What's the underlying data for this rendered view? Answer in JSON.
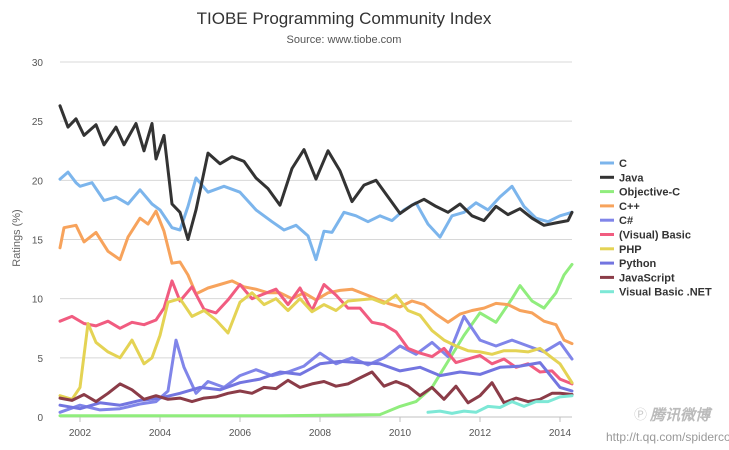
{
  "chart_data": {
    "type": "line",
    "title": "TIOBE Programming Community Index",
    "subtitle": "Source: www.tiobe.com",
    "ylabel": "Ratings (%)",
    "xlabel": "",
    "xlim": [
      2001.5,
      2014.3
    ],
    "ylim": [
      0,
      30
    ],
    "x_ticks": [
      2002,
      2004,
      2006,
      2008,
      2010,
      2012,
      2014
    ],
    "x_tick_labels": [
      "2002",
      "2004",
      "2006",
      "2008",
      "2010",
      "2012",
      "2014"
    ],
    "y_ticks": [
      0,
      5,
      10,
      15,
      20,
      25,
      30
    ],
    "y_tick_labels": [
      "0",
      "5",
      "10",
      "15",
      "20",
      "25",
      "30"
    ],
    "grid": true,
    "legend_position": "right",
    "series": [
      {
        "name": "C",
        "color": "#7cb5ec",
        "x": [
          2001.5,
          2001.7,
          2001.9,
          2002.0,
          2002.3,
          2002.6,
          2002.9,
          2003.2,
          2003.5,
          2003.8,
          2004.0,
          2004.3,
          2004.5,
          2004.7,
          2004.9,
          2005.2,
          2005.6,
          2006.0,
          2006.4,
          2006.8,
          2007.1,
          2007.4,
          2007.7,
          2007.9,
          2008.1,
          2008.3,
          2008.6,
          2008.9,
          2009.2,
          2009.5,
          2009.8,
          2010.1,
          2010.4,
          2010.7,
          2011.0,
          2011.3,
          2011.6,
          2011.9,
          2012.2,
          2012.5,
          2012.8,
          2013.1,
          2013.4,
          2013.7,
          2014.0,
          2014.3
        ],
        "y": [
          20.1,
          20.7,
          19.8,
          19.5,
          19.8,
          18.3,
          18.6,
          18.0,
          19.2,
          18.0,
          17.5,
          16.0,
          15.8,
          17.8,
          20.2,
          19.0,
          19.5,
          19.0,
          17.5,
          16.5,
          15.8,
          16.2,
          15.3,
          13.3,
          15.7,
          15.6,
          17.3,
          17.0,
          16.5,
          17.0,
          16.6,
          17.5,
          18.1,
          16.3,
          15.2,
          17.0,
          17.3,
          18.1,
          17.5,
          18.6,
          19.5,
          17.8,
          16.8,
          16.5,
          17.0,
          17.3
        ]
      },
      {
        "name": "Java",
        "color": "#333333",
        "x": [
          2001.5,
          2001.7,
          2001.9,
          2002.1,
          2002.4,
          2002.6,
          2002.9,
          2003.1,
          2003.4,
          2003.6,
          2003.8,
          2003.9,
          2004.1,
          2004.3,
          2004.5,
          2004.7,
          2004.9,
          2005.2,
          2005.5,
          2005.8,
          2006.1,
          2006.4,
          2006.7,
          2007.0,
          2007.3,
          2007.6,
          2007.9,
          2008.2,
          2008.5,
          2008.8,
          2009.1,
          2009.4,
          2009.7,
          2010.0,
          2010.3,
          2010.6,
          2010.9,
          2011.2,
          2011.5,
          2011.8,
          2012.1,
          2012.4,
          2012.7,
          2013.0,
          2013.3,
          2013.6,
          2013.9,
          2014.2,
          2014.3
        ],
        "y": [
          26.3,
          24.5,
          25.2,
          23.8,
          24.7,
          23.0,
          24.5,
          23.0,
          24.8,
          22.5,
          24.8,
          21.8,
          23.8,
          18.0,
          17.3,
          15.0,
          17.5,
          22.3,
          21.4,
          22.0,
          21.6,
          20.2,
          19.3,
          17.9,
          21.0,
          22.6,
          20.1,
          22.5,
          20.8,
          18.2,
          19.6,
          20.0,
          18.6,
          17.2,
          17.9,
          18.4,
          17.8,
          17.3,
          18.0,
          17.0,
          16.6,
          17.8,
          17.1,
          17.6,
          16.8,
          16.2,
          16.4,
          16.6,
          17.3
        ]
      },
      {
        "name": "Objective-C",
        "color": "#90ed7d",
        "x": [
          2001.5,
          2004.0,
          2007.0,
          2009.5,
          2010.0,
          2010.4,
          2010.8,
          2011.2,
          2011.6,
          2012.0,
          2012.4,
          2012.8,
          2013.0,
          2013.3,
          2013.6,
          2013.9,
          2014.1,
          2014.3
        ],
        "y": [
          0.1,
          0.1,
          0.1,
          0.2,
          0.9,
          1.3,
          2.5,
          4.7,
          6.9,
          8.8,
          8.0,
          10.0,
          11.1,
          9.8,
          9.2,
          10.5,
          12.0,
          12.9
        ]
      },
      {
        "name": "C++",
        "color": "#f7a35c",
        "x": [
          2001.5,
          2001.6,
          2001.9,
          2002.1,
          2002.4,
          2002.7,
          2003.0,
          2003.2,
          2003.5,
          2003.7,
          2003.9,
          2004.1,
          2004.3,
          2004.5,
          2004.7,
          2004.9,
          2005.2,
          2005.5,
          2005.8,
          2006.1,
          2006.4,
          2006.7,
          2007.0,
          2007.3,
          2007.6,
          2007.9,
          2008.2,
          2008.5,
          2008.8,
          2009.1,
          2009.4,
          2009.7,
          2010.0,
          2010.3,
          2010.6,
          2010.9,
          2011.2,
          2011.5,
          2011.8,
          2012.1,
          2012.4,
          2012.7,
          2013.0,
          2013.3,
          2013.6,
          2013.9,
          2014.1,
          2014.3
        ],
        "y": [
          14.3,
          16.0,
          16.2,
          14.8,
          15.6,
          14.0,
          13.3,
          15.2,
          16.8,
          16.3,
          17.4,
          15.7,
          13.0,
          13.1,
          12.0,
          10.4,
          10.9,
          11.2,
          11.5,
          11.0,
          10.8,
          10.5,
          10.5,
          10.0,
          10.5,
          9.9,
          10.5,
          10.7,
          10.8,
          10.4,
          10.0,
          9.6,
          9.3,
          9.8,
          9.5,
          8.7,
          8.0,
          8.7,
          9.0,
          9.2,
          9.6,
          9.5,
          9.0,
          8.8,
          8.1,
          7.8,
          6.5,
          6.2
        ]
      },
      {
        "name": "C#",
        "color": "#8085e9",
        "x": [
          2001.5,
          2002.0,
          2002.5,
          2003.0,
          2003.5,
          2003.9,
          2004.2,
          2004.4,
          2004.6,
          2004.9,
          2005.2,
          2005.6,
          2006.0,
          2006.4,
          2006.8,
          2007.2,
          2007.6,
          2008.0,
          2008.4,
          2008.8,
          2009.2,
          2009.6,
          2010.0,
          2010.4,
          2010.8,
          2011.2,
          2011.6,
          2012.0,
          2012.4,
          2012.8,
          2013.2,
          2013.6,
          2014.0,
          2014.3
        ],
        "y": [
          0.4,
          1.0,
          0.6,
          0.7,
          1.1,
          1.3,
          2.2,
          6.5,
          4.2,
          2.0,
          3.0,
          2.5,
          3.5,
          4.0,
          3.5,
          3.8,
          4.3,
          5.4,
          4.5,
          5.0,
          4.4,
          5.0,
          6.0,
          5.3,
          6.3,
          5.1,
          8.5,
          6.5,
          6.0,
          6.5,
          6.0,
          5.5,
          6.3,
          4.9
        ]
      },
      {
        "name": "(Visual) Basic",
        "color": "#f15c80",
        "x": [
          2001.5,
          2001.8,
          2002.1,
          2002.4,
          2002.7,
          2003.0,
          2003.3,
          2003.6,
          2003.9,
          2004.1,
          2004.3,
          2004.5,
          2004.8,
          2005.1,
          2005.4,
          2005.7,
          2006.0,
          2006.3,
          2006.6,
          2006.9,
          2007.2,
          2007.5,
          2007.8,
          2008.1,
          2008.4,
          2008.7,
          2009.0,
          2009.3,
          2009.6,
          2009.9,
          2010.2,
          2010.5,
          2010.8,
          2011.1,
          2011.4,
          2011.7,
          2012.0,
          2012.3,
          2012.6,
          2012.9,
          2013.2,
          2013.5,
          2013.8,
          2014.0,
          2014.3
        ],
        "y": [
          8.1,
          8.5,
          7.9,
          7.7,
          8.1,
          7.5,
          8.0,
          7.8,
          8.2,
          9.2,
          11.5,
          9.8,
          11.0,
          9.1,
          8.8,
          9.9,
          11.2,
          10.0,
          10.4,
          10.8,
          9.5,
          10.9,
          9.0,
          11.2,
          10.3,
          9.2,
          9.2,
          8.0,
          7.8,
          7.2,
          5.8,
          5.4,
          5.1,
          5.8,
          4.6,
          4.9,
          5.2,
          4.5,
          4.9,
          4.2,
          4.5,
          3.8,
          3.9,
          3.2,
          2.8
        ]
      },
      {
        "name": "PHP",
        "color": "#e4d354",
        "x": [
          2001.5,
          2001.8,
          2002.0,
          2002.2,
          2002.4,
          2002.7,
          2003.0,
          2003.3,
          2003.6,
          2003.8,
          2004.0,
          2004.2,
          2004.5,
          2004.8,
          2005.1,
          2005.4,
          2005.7,
          2006.0,
          2006.3,
          2006.6,
          2006.9,
          2007.2,
          2007.5,
          2007.8,
          2008.1,
          2008.4,
          2008.7,
          2009.0,
          2009.3,
          2009.6,
          2009.9,
          2010.2,
          2010.5,
          2010.8,
          2011.1,
          2011.4,
          2011.7,
          2012.0,
          2012.3,
          2012.6,
          2012.9,
          2013.2,
          2013.5,
          2013.8,
          2014.0,
          2014.3
        ],
        "y": [
          1.8,
          1.5,
          2.5,
          7.9,
          6.3,
          5.5,
          5.0,
          6.5,
          4.5,
          5.0,
          6.9,
          9.7,
          10.0,
          8.5,
          9.0,
          8.2,
          7.1,
          9.7,
          10.5,
          9.5,
          10.0,
          9.0,
          10.0,
          8.9,
          9.5,
          9.0,
          9.8,
          9.9,
          10.0,
          9.6,
          10.3,
          9.0,
          8.6,
          7.3,
          6.5,
          6.0,
          5.6,
          5.5,
          5.3,
          5.6,
          5.6,
          5.5,
          5.8,
          5.0,
          4.5,
          2.9
        ]
      },
      {
        "name": "Python",
        "color": "#7375e0",
        "x": [
          2001.5,
          2002.0,
          2002.5,
          2003.0,
          2003.5,
          2004.0,
          2004.5,
          2005.0,
          2005.5,
          2006.0,
          2006.5,
          2007.0,
          2007.5,
          2008.0,
          2008.5,
          2009.0,
          2009.5,
          2010.0,
          2010.5,
          2011.0,
          2011.5,
          2012.0,
          2012.5,
          2013.0,
          2013.5,
          2014.0,
          2014.3
        ],
        "y": [
          1.0,
          0.7,
          1.2,
          1.0,
          1.4,
          1.6,
          2.0,
          2.5,
          2.3,
          2.9,
          3.2,
          3.8,
          3.6,
          4.5,
          4.7,
          4.6,
          4.5,
          3.9,
          4.2,
          3.5,
          3.8,
          3.6,
          4.2,
          4.3,
          4.6,
          2.5,
          2.2
        ]
      },
      {
        "name": "JavaScript",
        "color": "#8b3c48",
        "x": [
          2001.5,
          2001.8,
          2002.1,
          2002.4,
          2002.7,
          2003.0,
          2003.3,
          2003.6,
          2003.9,
          2004.2,
          2004.5,
          2004.8,
          2005.1,
          2005.4,
          2005.7,
          2006.0,
          2006.3,
          2006.6,
          2006.9,
          2007.2,
          2007.5,
          2007.8,
          2008.1,
          2008.4,
          2008.7,
          2009.0,
          2009.3,
          2009.6,
          2009.9,
          2010.2,
          2010.5,
          2010.8,
          2011.1,
          2011.4,
          2011.7,
          2012.0,
          2012.3,
          2012.6,
          2012.9,
          2013.2,
          2013.5,
          2013.8,
          2014.0,
          2014.3
        ],
        "y": [
          1.6,
          1.4,
          1.9,
          1.3,
          2.0,
          2.8,
          2.3,
          1.5,
          1.8,
          1.5,
          1.6,
          1.3,
          1.6,
          1.7,
          2.0,
          2.2,
          2.0,
          2.5,
          2.4,
          3.1,
          2.5,
          2.8,
          3.0,
          2.6,
          2.8,
          3.3,
          3.8,
          2.6,
          3.0,
          2.6,
          1.8,
          2.5,
          1.5,
          2.6,
          1.2,
          1.8,
          2.9,
          1.2,
          1.6,
          1.3,
          1.5,
          2.0,
          2.0,
          1.9
        ]
      },
      {
        "name": "Visual Basic .NET",
        "color": "#7de8d6",
        "x": [
          2010.7,
          2011.0,
          2011.3,
          2011.6,
          2011.9,
          2012.2,
          2012.5,
          2012.8,
          2013.1,
          2013.4,
          2013.7,
          2014.0,
          2014.3
        ],
        "y": [
          0.4,
          0.5,
          0.3,
          0.5,
          0.4,
          0.9,
          0.8,
          1.3,
          0.9,
          1.3,
          1.3,
          1.7,
          1.8
        ]
      }
    ]
  },
  "watermark": {
    "brand": "腾讯微博",
    "url": "http://t.qq.com/spidercoco"
  }
}
